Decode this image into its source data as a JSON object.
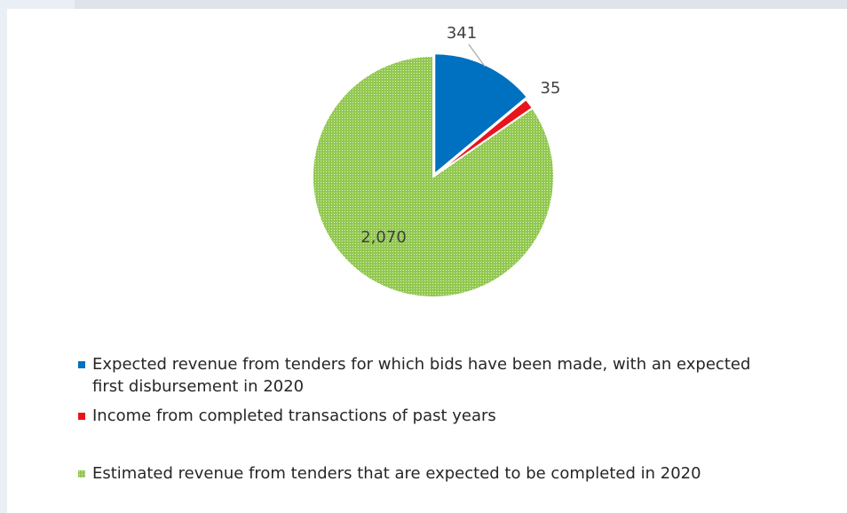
{
  "chart_data": {
    "type": "pie",
    "categories": [
      "Expected revenue from tenders for which bids have been made, with an expected first disbursement in 2020",
      "Income from completed transactions of past years",
      "Estimated revenue from tenders that are expected to be completed in 2020"
    ],
    "values": [
      341,
      35,
      2070
    ],
    "value_labels": [
      "341",
      "35",
      "2,070"
    ],
    "colors": [
      "#0070c0",
      "#e8141c",
      "#92c850"
    ]
  }
}
